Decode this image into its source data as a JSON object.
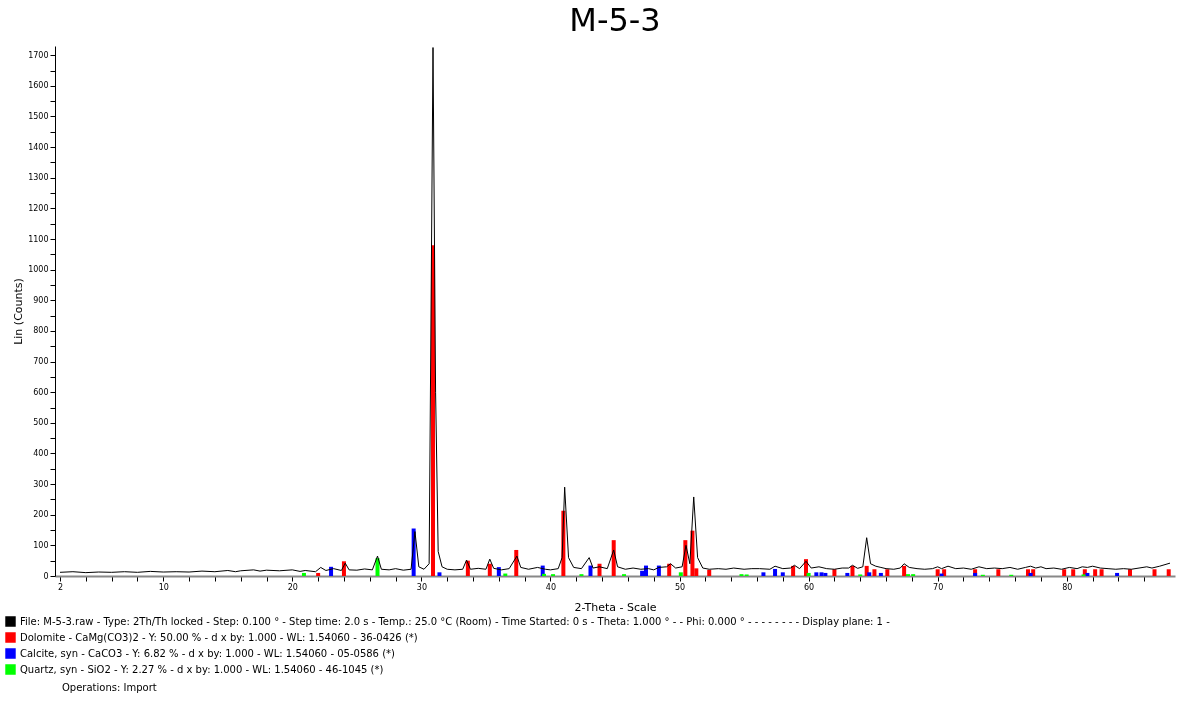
{
  "chart_data": {
    "type": "line",
    "title": "M-5-3",
    "xlabel": "2-Theta - Scale",
    "ylabel": "Lin (Counts)",
    "xlim": [
      2,
      88
    ],
    "ylim": [
      0,
      1730
    ],
    "xticks": [
      2,
      {
        "value": 4,
        "label": null
      },
      {
        "value": 6,
        "label": null
      },
      {
        "value": 8,
        "label": null
      },
      10,
      {
        "value": 12,
        "label": null
      },
      {
        "value": 14,
        "label": null
      },
      {
        "value": 16,
        "label": null
      },
      {
        "value": 18,
        "label": null
      },
      20,
      {
        "value": 22,
        "label": null
      },
      {
        "value": 24,
        "label": null
      },
      {
        "value": 26,
        "label": null
      },
      {
        "value": 28,
        "label": null
      },
      30,
      {
        "value": 32,
        "label": null
      },
      {
        "value": 34,
        "label": null
      },
      {
        "value": 36,
        "label": null
      },
      {
        "value": 38,
        "label": null
      },
      40,
      {
        "value": 42,
        "label": null
      },
      {
        "value": 44,
        "label": null
      },
      {
        "value": 46,
        "label": null
      },
      {
        "value": 48,
        "label": null
      },
      50,
      {
        "value": 52,
        "label": null
      },
      {
        "value": 54,
        "label": null
      },
      {
        "value": 56,
        "label": null
      },
      {
        "value": 58,
        "label": null
      },
      60,
      {
        "value": 62,
        "label": null
      },
      {
        "value": 64,
        "label": null
      },
      {
        "value": 66,
        "label": null
      },
      {
        "value": 68,
        "label": null
      },
      70,
      {
        "value": 72,
        "label": null
      },
      {
        "value": 74,
        "label": null
      },
      {
        "value": 76,
        "label": null
      },
      {
        "value": 78,
        "label": null
      },
      80,
      {
        "value": 82,
        "label": null
      },
      {
        "value": 84,
        "label": null
      },
      {
        "value": 86,
        "label": null
      }
    ],
    "yticks": [
      0,
      {
        "value": 50,
        "label": null
      },
      100,
      {
        "value": 150,
        "label": null
      },
      200,
      {
        "value": 250,
        "label": null
      },
      300,
      {
        "value": 350,
        "label": null
      },
      400,
      {
        "value": 450,
        "label": null
      },
      500,
      {
        "value": 550,
        "label": null
      },
      600,
      {
        "value": 650,
        "label": null
      },
      700,
      {
        "value": 750,
        "label": null
      },
      800,
      {
        "value": 850,
        "label": null
      },
      900,
      {
        "value": 950,
        "label": null
      },
      1000,
      {
        "value": 1050,
        "label": null
      },
      1100,
      {
        "value": 1150,
        "label": null
      },
      1200,
      {
        "value": 1250,
        "label": null
      },
      1300,
      {
        "value": 1350,
        "label": null
      },
      1400,
      {
        "value": 1450,
        "label": null
      },
      1500,
      {
        "value": 1550,
        "label": null
      },
      1600,
      {
        "value": 1650,
        "label": null
      },
      1700
    ],
    "legend": "bottom left",
    "grid": false,
    "marker": "none",
    "line_style": "solid",
    "annotations": [
      "Operations: Import"
    ],
    "series": [
      {
        "name": "File: M-5-3.raw - Type: 2Th/Th locked - Step: 0.100 ° - Step time: 2.0 s - Temp.: 25.0 °C (Room) - Time Started: 0 s - Theta: 1.000 ° - - Phi: 0.000 ° - - - - - - - - Display plane: 1 -",
        "color": "#000000",
        "x": [
          2,
          3,
          4,
          5,
          6,
          7,
          8,
          9,
          10,
          11,
          12,
          13,
          14,
          15,
          15.6,
          16,
          17,
          17.5,
          18,
          19,
          20,
          20.6,
          21,
          21.8,
          22.2,
          22.6,
          23.2,
          23.8,
          24.1,
          24.4,
          25,
          25.6,
          26.2,
          26.6,
          26.9,
          27.5,
          28,
          28.6,
          29.2,
          29.5,
          29.8,
          30.2,
          30.6,
          30.9,
          31.1,
          31.3,
          31.6,
          32,
          32.6,
          33.2,
          33.5,
          33.8,
          34.4,
          35,
          35.3,
          35.6,
          36.2,
          36.8,
          37.4,
          37.7,
          38.3,
          39,
          39.6,
          40,
          40.6,
          40.9,
          41.1,
          41.4,
          41.8,
          42.4,
          43,
          43.3,
          43.8,
          44.4,
          44.9,
          45.2,
          45.8,
          46.4,
          47,
          47.6,
          48,
          48.4,
          49,
          49.3,
          49.7,
          50.2,
          50.5,
          50.8,
          51.1,
          51.4,
          51.8,
          52.3,
          53,
          53.6,
          54.2,
          55,
          55.6,
          56.2,
          57,
          57.4,
          58,
          58.6,
          58.9,
          59.3,
          59.8,
          60.2,
          60.8,
          61.4,
          62,
          62.6,
          63.1,
          63.4,
          63.8,
          64.2,
          64.5,
          64.8,
          65.2,
          65.6,
          66,
          66.6,
          67.1,
          67.4,
          67.8,
          68.4,
          69,
          69.6,
          70,
          70.3,
          70.8,
          71.4,
          72,
          72.6,
          73.2,
          73.8,
          74.4,
          75,
          75.6,
          76.2,
          76.8,
          77.2,
          77.6,
          78,
          78.4,
          79,
          79.6,
          80.2,
          80.8,
          81.2,
          81.6,
          82,
          82.6,
          83.2,
          83.8,
          84.4,
          85,
          85.6,
          86.2,
          86.6,
          87.2,
          88
        ],
        "values": [
          12,
          14,
          11,
          13,
          12,
          14,
          12,
          15,
          13,
          14,
          13,
          16,
          14,
          18,
          14,
          17,
          20,
          16,
          19,
          17,
          20,
          15,
          18,
          14,
          28,
          18,
          24,
          18,
          42,
          20,
          19,
          23,
          20,
          65,
          22,
          20,
          24,
          19,
          22,
          145,
          30,
          22,
          40,
          1725,
          600,
          80,
          30,
          22,
          20,
          22,
          52,
          22,
          25,
          22,
          55,
          25,
          20,
          24,
          65,
          28,
          22,
          28,
          22,
          20,
          24,
          60,
          290,
          60,
          28,
          24,
          60,
          26,
          30,
          24,
          85,
          30,
          22,
          26,
          22,
          24,
          20,
          28,
          30,
          40,
          26,
          30,
          100,
          40,
          258,
          60,
          26,
          22,
          24,
          22,
          26,
          22,
          24,
          24,
          22,
          32,
          24,
          26,
          35,
          24,
          48,
          26,
          30,
          24,
          22,
          26,
          26,
          35,
          25,
          30,
          125,
          40,
          32,
          28,
          24,
          22,
          26,
          40,
          28,
          24,
          22,
          24,
          30,
          24,
          32,
          24,
          26,
          22,
          30,
          24,
          26,
          24,
          28,
          22,
          28,
          32,
          26,
          30,
          24,
          26,
          22,
          28,
          24,
          30,
          28,
          32,
          26,
          24,
          22,
          24,
          22,
          26,
          30,
          26,
          32,
          42
        ]
      },
      {
        "name": "Dolomite - CaMg(CO3)2 - Y: 50.00 % - d x by: 1.000 - WL: 1.54060 - 36-0426 (*)",
        "type": "bar",
        "color": "#ff0000",
        "x": [
          22.0,
          24.0,
          30.9,
          33.6,
          35.3,
          37.35,
          41.0,
          43.8,
          44.9,
          49.2,
          50.45,
          51.0,
          51.3,
          52.3,
          58.8,
          59.8,
          62.0,
          63.4,
          64.5,
          65.1,
          66.1,
          67.4,
          70.0,
          70.5,
          72.9,
          74.7,
          77.0,
          77.4,
          79.8,
          80.5,
          81.4,
          82.2,
          82.7,
          84.9,
          86.8,
          87.9
        ],
        "values": [
          10,
          48,
          1080,
          50,
          40,
          85,
          213,
          40,
          117,
          40,
          117,
          148,
          25,
          20,
          33,
          55,
          22,
          33,
          33,
          22,
          22,
          33,
          22,
          22,
          22,
          22,
          22,
          22,
          22,
          22,
          22,
          22,
          22,
          22,
          22,
          22
        ]
      },
      {
        "name": "Calcite, syn - CaCO3 - Y: 6.82 % - d x by: 1.000 - WL: 1.54060 - 05-0586 (*)",
        "type": "bar",
        "color": "#0000ff",
        "x": [
          23.0,
          29.4,
          31.4,
          36.0,
          39.4,
          43.1,
          47.1,
          47.4,
          48.4,
          56.5,
          57.4,
          58.0,
          60.6,
          61.0,
          61.3,
          63.0,
          64.7,
          65.6,
          70.3,
          72.9,
          77.2,
          81.6,
          83.9
        ],
        "values": [
          30,
          155,
          12,
          29,
          34,
          34,
          17,
          34,
          34,
          12,
          23,
          12,
          12,
          12,
          10,
          10,
          12,
          10,
          8,
          10,
          10,
          10,
          10
        ]
      },
      {
        "name": "Quartz, syn - SiO2 - Y: 2.27 % - d x by: 1.000 - WL: 1.54060 - 46-1045 (*)",
        "type": "bar",
        "color": "#00ff00",
        "x": [
          20.9,
          26.6,
          36.5,
          39.5,
          40.2,
          42.4,
          45.7,
          50.1,
          54.8,
          55.2,
          60.0,
          64.0,
          67.7,
          68.1,
          73.5,
          75.7,
          81.3
        ],
        "values": [
          10,
          58,
          8,
          7,
          6,
          6,
          6,
          12,
          6,
          5,
          10,
          5,
          6,
          6,
          4,
          4,
          5
        ]
      }
    ]
  }
}
